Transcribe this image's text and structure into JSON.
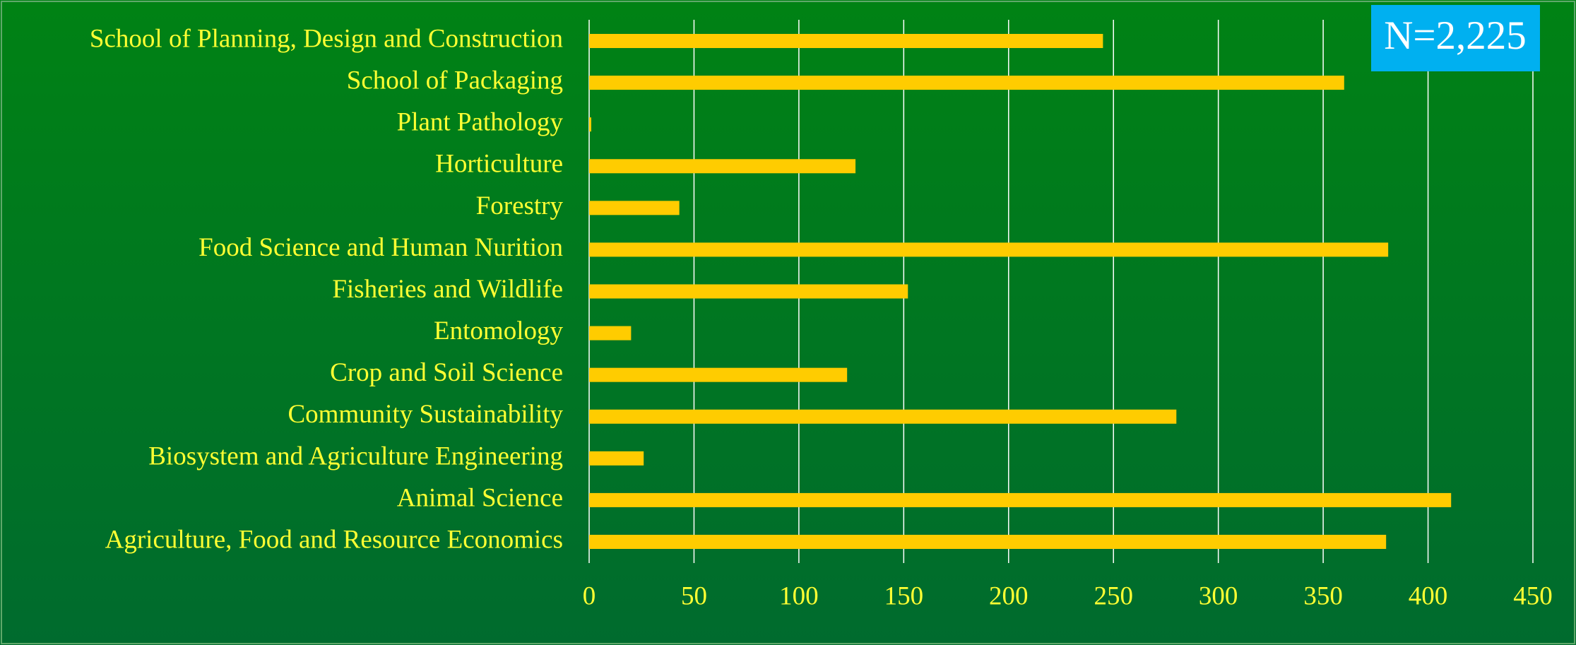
{
  "chart_data": {
    "type": "bar",
    "orientation": "horizontal",
    "categories": [
      "School of Planning, Design and Construction",
      "School of Packaging",
      "Plant Pathology",
      "Horticulture",
      "Forestry",
      "Food Science and Human Nurition",
      "Fisheries and Wildlife",
      "Entomology",
      "Crop and Soil Science",
      "Community Sustainability",
      "Biosystem and Agriculture Engineering",
      "Animal Science",
      "Agriculture, Food and Resource Economics"
    ],
    "values": [
      245,
      360,
      1,
      127,
      43,
      381,
      152,
      20,
      123,
      280,
      26,
      411,
      380
    ],
    "color": "#ffcc00",
    "xlim": [
      0,
      450
    ],
    "xticks": [
      0,
      50,
      100,
      150,
      200,
      250,
      300,
      350,
      400,
      450
    ],
    "grid": true,
    "annotation": "N=2,225"
  }
}
